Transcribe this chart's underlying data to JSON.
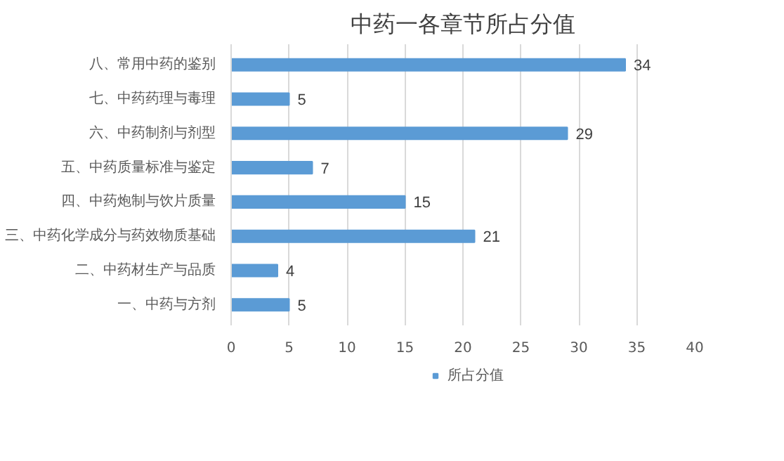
{
  "chart_data": {
    "type": "bar",
    "orientation": "horizontal",
    "title": "中药一各章节所占分值",
    "categories": [
      "八、常用中药的鉴别",
      "七、中药药理与毒理",
      "六、中药制剂与剂型",
      "五、中药质量标准与鉴定",
      "四、中药炮制与饮片质量",
      "三、中药化学成分与药效物质基础",
      "二、中药材生产与品质",
      "一、中药与方剂"
    ],
    "series": [
      {
        "name": "所占分值",
        "color": "#5b9bd5",
        "values": [
          34,
          5,
          29,
          7,
          15,
          21,
          4,
          5
        ]
      }
    ],
    "xlim": [
      0,
      40
    ],
    "xticks": [
      0,
      5,
      10,
      15,
      20,
      25,
      30,
      35,
      40
    ],
    "grid": "x",
    "legend": "bottom",
    "data_labels": true
  }
}
